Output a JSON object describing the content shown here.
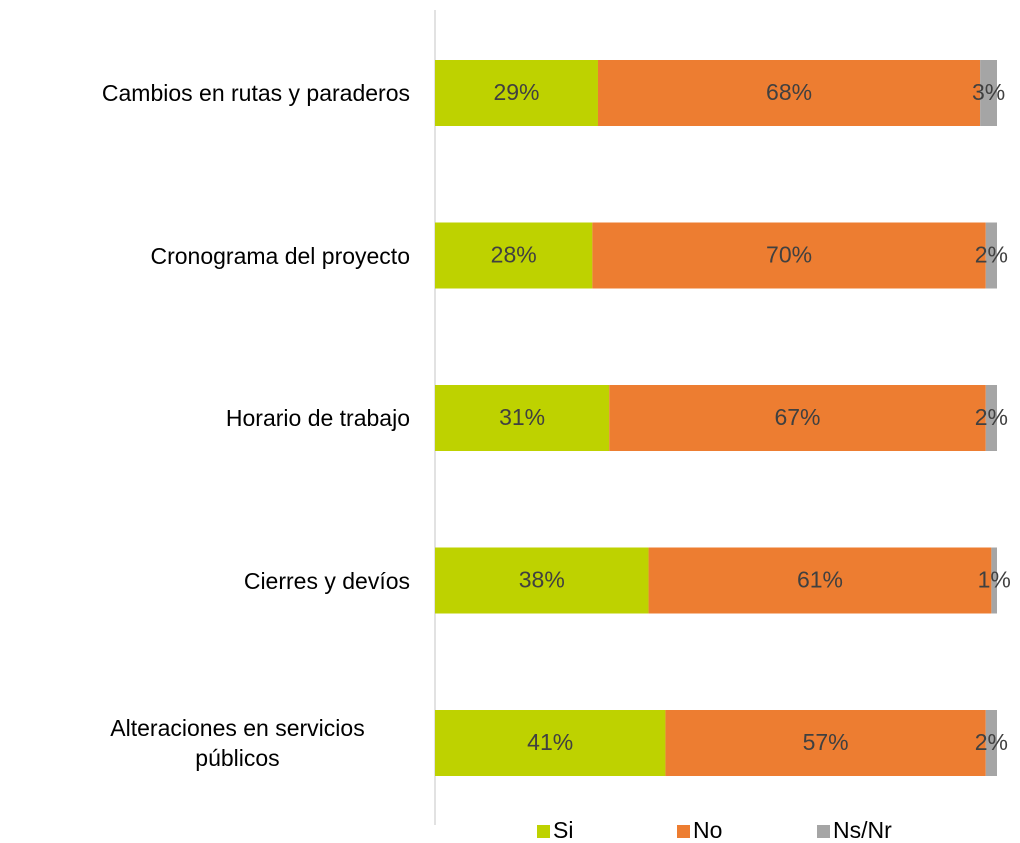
{
  "chart_data": {
    "type": "stacked-bar-horizontal",
    "categories": [
      "Cambios en rutas y paraderos",
      "Cronograma del proyecto",
      "Horario de trabajo",
      "Cierres y devíos",
      "Alteraciones en servicios públicos"
    ],
    "series": [
      {
        "name": "Si",
        "color": "#bed200",
        "values": [
          29,
          28,
          31,
          38,
          41
        ],
        "value_labels": [
          "29%",
          "28%",
          "31%",
          "38%",
          "41%"
        ]
      },
      {
        "name": "No",
        "color": "#ed7d31",
        "values": [
          68,
          70,
          67,
          61,
          57
        ],
        "value_labels": [
          "68%",
          "70%",
          "67%",
          "61%",
          "57%"
        ]
      },
      {
        "name": "Ns/Nr",
        "color": "#a5a5a5",
        "values": [
          3,
          2,
          2,
          1,
          2
        ],
        "value_labels": [
          "3%",
          "2%",
          "2%",
          "1%",
          "2%"
        ]
      }
    ],
    "xlim": [
      0,
      100
    ],
    "legend": "bottom"
  }
}
